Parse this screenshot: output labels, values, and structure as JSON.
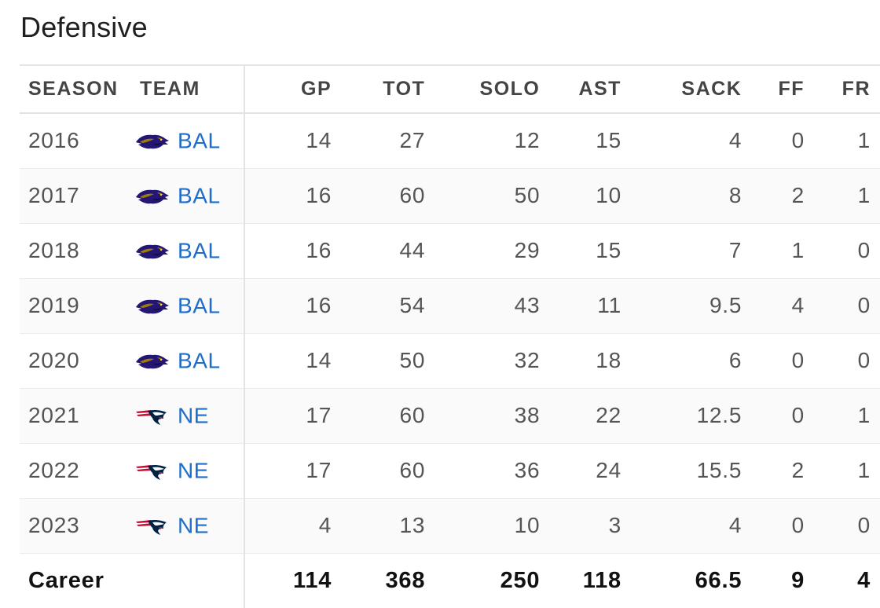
{
  "section": {
    "title": "Defensive"
  },
  "columns": {
    "season": "SEASON",
    "team": "TEAM",
    "gp": "GP",
    "tot": "TOT",
    "solo": "SOLO",
    "ast": "AST",
    "sack": "SACK",
    "ff": "FF",
    "fr": "FR"
  },
  "rows": [
    {
      "season": "2016",
      "team": "BAL",
      "logo": "ravens-logo-icon",
      "gp": "14",
      "tot": "27",
      "solo": "12",
      "ast": "15",
      "sack": "4",
      "ff": "0",
      "fr": "1"
    },
    {
      "season": "2017",
      "team": "BAL",
      "logo": "ravens-logo-icon",
      "gp": "16",
      "tot": "60",
      "solo": "50",
      "ast": "10",
      "sack": "8",
      "ff": "2",
      "fr": "1"
    },
    {
      "season": "2018",
      "team": "BAL",
      "logo": "ravens-logo-icon",
      "gp": "16",
      "tot": "44",
      "solo": "29",
      "ast": "15",
      "sack": "7",
      "ff": "1",
      "fr": "0"
    },
    {
      "season": "2019",
      "team": "BAL",
      "logo": "ravens-logo-icon",
      "gp": "16",
      "tot": "54",
      "solo": "43",
      "ast": "11",
      "sack": "9.5",
      "ff": "4",
      "fr": "0"
    },
    {
      "season": "2020",
      "team": "BAL",
      "logo": "ravens-logo-icon",
      "gp": "14",
      "tot": "50",
      "solo": "32",
      "ast": "18",
      "sack": "6",
      "ff": "0",
      "fr": "0"
    },
    {
      "season": "2021",
      "team": "NE",
      "logo": "patriots-logo-icon",
      "gp": "17",
      "tot": "60",
      "solo": "38",
      "ast": "22",
      "sack": "12.5",
      "ff": "0",
      "fr": "1"
    },
    {
      "season": "2022",
      "team": "NE",
      "logo": "patriots-logo-icon",
      "gp": "17",
      "tot": "60",
      "solo": "36",
      "ast": "24",
      "sack": "15.5",
      "ff": "2",
      "fr": "1"
    },
    {
      "season": "2023",
      "team": "NE",
      "logo": "patriots-logo-icon",
      "gp": "4",
      "tot": "13",
      "solo": "10",
      "ast": "3",
      "sack": "4",
      "ff": "0",
      "fr": "0"
    }
  ],
  "career": {
    "label": "Career",
    "gp": "114",
    "tot": "368",
    "solo": "250",
    "ast": "118",
    "sack": "66.5",
    "ff": "9",
    "fr": "4"
  },
  "colors": {
    "link": "#1f6ec9",
    "ravens_purple": "#241773",
    "ravens_gold": "#9e7c0c",
    "patriots_navy": "#002244",
    "patriots_red": "#c60c30"
  }
}
